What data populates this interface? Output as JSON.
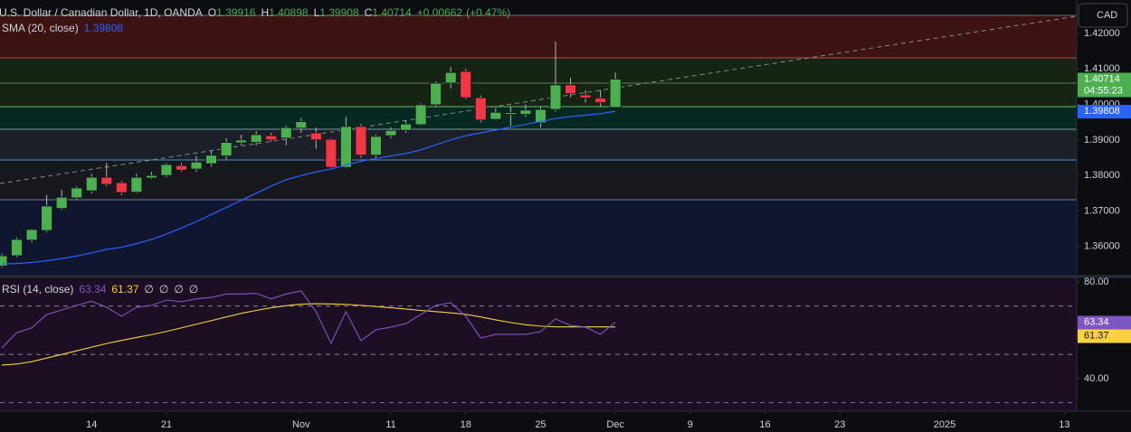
{
  "header": {
    "symbol_title": "U.S. Dollar / Canadian Dollar, 1D, OANDA",
    "ohlc_prefixes": [
      "O",
      "H",
      "L",
      "C"
    ],
    "change_label": "+0.00662",
    "change_percent_label": "(+0.47%)",
    "currency": "CAD",
    "countdown": "04:55:23"
  },
  "chart_data": [
    {
      "type": "candlestick",
      "x": [
        "2024-10-04",
        "2024-10-07",
        "2024-10-08",
        "2024-10-09",
        "2024-10-10",
        "2024-10-11",
        "2024-10-14",
        "2024-10-15",
        "2024-10-16",
        "2024-10-17",
        "2024-10-18",
        "2024-10-21",
        "2024-10-22",
        "2024-10-23",
        "2024-10-24",
        "2024-10-25",
        "2024-10-28",
        "2024-10-29",
        "2024-10-30",
        "2024-10-31",
        "2024-11-01",
        "2024-11-04",
        "2024-11-05",
        "2024-11-06",
        "2024-11-07",
        "2024-11-08",
        "2024-11-11",
        "2024-11-12",
        "2024-11-13",
        "2024-11-14",
        "2024-11-15",
        "2024-11-18",
        "2024-11-19",
        "2024-11-20",
        "2024-11-21",
        "2024-11-22",
        "2024-11-25",
        "2024-11-26",
        "2024-11-27",
        "2024-11-28",
        "2024-11-29",
        "2024-12-02"
      ],
      "open": [
        1.3545,
        1.3574,
        1.3618,
        1.3645,
        1.3707,
        1.3737,
        1.3757,
        1.3795,
        1.378,
        1.3753,
        1.3793,
        1.38,
        1.3828,
        1.3818,
        1.3833,
        1.3855,
        1.3892,
        1.3893,
        1.3912,
        1.3905,
        1.3933,
        1.392,
        1.3902,
        1.3823,
        1.3938,
        1.3857,
        1.3912,
        1.3927,
        1.3943,
        1.3999,
        1.406,
        1.4093,
        1.4019,
        1.3958,
        1.3972,
        1.3972,
        1.3948,
        1.3986,
        1.4055,
        1.4027,
        1.4018,
        1.39916
      ],
      "high": [
        1.358,
        1.3625,
        1.365,
        1.3745,
        1.376,
        1.377,
        1.3805,
        1.3835,
        1.3785,
        1.3805,
        1.381,
        1.3835,
        1.3835,
        1.3855,
        1.387,
        1.3905,
        1.3915,
        1.3925,
        1.392,
        1.394,
        1.3962,
        1.3935,
        1.3905,
        1.3965,
        1.3945,
        1.3915,
        1.3935,
        1.3955,
        1.4003,
        1.4065,
        1.4105,
        1.41,
        1.4025,
        1.399,
        1.3995,
        1.4,
        1.3995,
        1.4177,
        1.4075,
        1.404,
        1.404,
        1.40898
      ],
      "low": [
        1.354,
        1.357,
        1.3612,
        1.364,
        1.3703,
        1.373,
        1.375,
        1.377,
        1.3745,
        1.375,
        1.379,
        1.3795,
        1.381,
        1.381,
        1.3825,
        1.3845,
        1.3885,
        1.3885,
        1.3895,
        1.3885,
        1.392,
        1.3875,
        1.382,
        1.382,
        1.385,
        1.385,
        1.3905,
        1.392,
        1.394,
        1.3995,
        1.4045,
        1.4015,
        1.395,
        1.3955,
        1.394,
        1.3965,
        1.3935,
        1.398,
        1.402,
        1.4005,
        1.3995,
        1.39908
      ],
      "close": [
        1.3574,
        1.362,
        1.3648,
        1.3714,
        1.3739,
        1.3765,
        1.3795,
        1.3775,
        1.3752,
        1.3795,
        1.38,
        1.3831,
        1.3815,
        1.3838,
        1.3857,
        1.3893,
        1.39,
        1.3915,
        1.39,
        1.3935,
        1.3952,
        1.39,
        1.3823,
        1.3938,
        1.3857,
        1.391,
        1.3927,
        1.3945,
        1.3999,
        1.406,
        1.409,
        1.4019,
        1.3956,
        1.3978,
        1.3977,
        1.3984,
        1.3986,
        1.4055,
        1.403,
        1.4018,
        1.4005,
        1.40714
      ],
      "up_color": "#4caf50",
      "down_color": "#f23645",
      "series": [
        {
          "name": "SMA (20, close)",
          "color": "#2962ff",
          "values": [
            1.3551,
            1.3552,
            1.3555,
            1.356,
            1.3566,
            1.3573,
            1.3582,
            1.3592,
            1.3598,
            1.3608,
            1.362,
            1.3635,
            1.3652,
            1.367,
            1.369,
            1.371,
            1.373,
            1.375,
            1.377,
            1.3788,
            1.38,
            1.381,
            1.3818,
            1.383,
            1.384,
            1.3848,
            1.3855,
            1.3862,
            1.3872,
            1.3886,
            1.39,
            1.3912,
            1.392,
            1.3928,
            1.3936,
            1.3944,
            1.3952,
            1.396,
            1.3966,
            1.397,
            1.3974,
            1.39808
          ]
        }
      ],
      "ylim": [
        1.3518,
        1.4294
      ],
      "yticks": [
        {
          "value": 1.36,
          "label": "1.36000"
        },
        {
          "value": 1.37,
          "label": "1.37000"
        },
        {
          "value": 1.38,
          "label": "1.38000"
        },
        {
          "value": 1.39,
          "label": "1.39000"
        },
        {
          "value": 1.4,
          "label": "1.40000"
        },
        {
          "value": 1.41,
          "label": "1.41000"
        },
        {
          "value": 1.42,
          "label": "1.42000"
        }
      ],
      "xticks": [
        {
          "value": "2024-10-14",
          "label": "14"
        },
        {
          "value": "2024-10-21",
          "label": "21"
        },
        {
          "value": "2024-11-01",
          "label": "Nov"
        },
        {
          "value": "2024-11-11",
          "label": "11"
        },
        {
          "value": "2024-11-18",
          "label": "18"
        },
        {
          "value": "2024-11-25",
          "label": "25"
        },
        {
          "value": "2024-12-02",
          "label": "Dec"
        },
        {
          "value": "2024-12-09",
          "label": "9"
        },
        {
          "value": "2024-12-16",
          "label": "16"
        },
        {
          "value": "2024-12-23",
          "label": "23"
        },
        {
          "value": "2025-01-01",
          "label": "2025"
        },
        {
          "value": "2025-01-13",
          "label": "13"
        }
      ]
    },
    {
      "type": "line",
      "title": "RSI (14, close)",
      "series": [
        {
          "color": "#7e57c2",
          "values": [
            52.7,
            59,
            61,
            66.5,
            68.4,
            70.3,
            72,
            69.5,
            65.8,
            69.5,
            70.3,
            72.5,
            71.8,
            73,
            73.6,
            75,
            75,
            75.3,
            73,
            75,
            76.3,
            67.7,
            54.6,
            67.7,
            55.7,
            60.2,
            61.3,
            62.8,
            66.5,
            70.3,
            71.4,
            65.8,
            56.8,
            58.3,
            58.3,
            58.3,
            59.4,
            64.7,
            62,
            61.3,
            58.3,
            63.34
          ]
        },
        {
          "color": "#f7d23e",
          "values": [
            45.6,
            46,
            47,
            48.5,
            50,
            51.5,
            53,
            54.5,
            55.8,
            57,
            58.2,
            59.5,
            61,
            62.5,
            64,
            65.5,
            67,
            68.2,
            69.3,
            70.2,
            70.8,
            71,
            70.9,
            70.7,
            70.3,
            69.8,
            69.3,
            68.8,
            68.2,
            67.7,
            67.2,
            66.6,
            65.5,
            64.3,
            63.2,
            62.3,
            61.7,
            61.4,
            61.4,
            61.4,
            61.4,
            61.37
          ]
        }
      ],
      "placeholder_values": [
        "∅",
        "∅",
        "∅",
        "∅"
      ],
      "ylim": [
        26.5,
        82.6
      ],
      "yticks": [
        {
          "value": 80,
          "label": "80.00"
        },
        {
          "value": 40,
          "label": "40.00"
        }
      ],
      "levels": [
        70,
        50,
        30
      ]
    }
  ]
}
